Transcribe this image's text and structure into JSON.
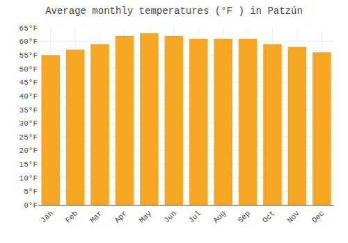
{
  "chart_data": {
    "type": "bar",
    "title": "Average monthly temperatures (°F ) in Patzún",
    "categories": [
      "Jan",
      "Feb",
      "Mar",
      "Apr",
      "May",
      "Jun",
      "Jul",
      "Aug",
      "Sep",
      "Oct",
      "Nov",
      "Dec"
    ],
    "values": [
      55,
      57,
      59,
      62,
      63,
      62,
      61,
      61,
      61,
      59,
      58,
      56
    ],
    "color": "#F5A623",
    "ylim": [
      0,
      65
    ],
    "yticks": [
      {
        "value": 0,
        "label": "0°F"
      },
      {
        "value": 5,
        "label": "5°F"
      },
      {
        "value": 10,
        "label": "10°F"
      },
      {
        "value": 15,
        "label": "15°F"
      },
      {
        "value": 20,
        "label": "20°F"
      },
      {
        "value": 25,
        "label": "25°F"
      },
      {
        "value": 30,
        "label": "30°F"
      },
      {
        "value": 35,
        "label": "35°F"
      },
      {
        "value": 40,
        "label": "40°F"
      },
      {
        "value": 45,
        "label": "45°F"
      },
      {
        "value": 50,
        "label": "50°F"
      },
      {
        "value": 55,
        "label": "55°F"
      },
      {
        "value": 60,
        "label": "60°F"
      },
      {
        "value": 65,
        "label": "65°F"
      }
    ],
    "grid": true
  }
}
